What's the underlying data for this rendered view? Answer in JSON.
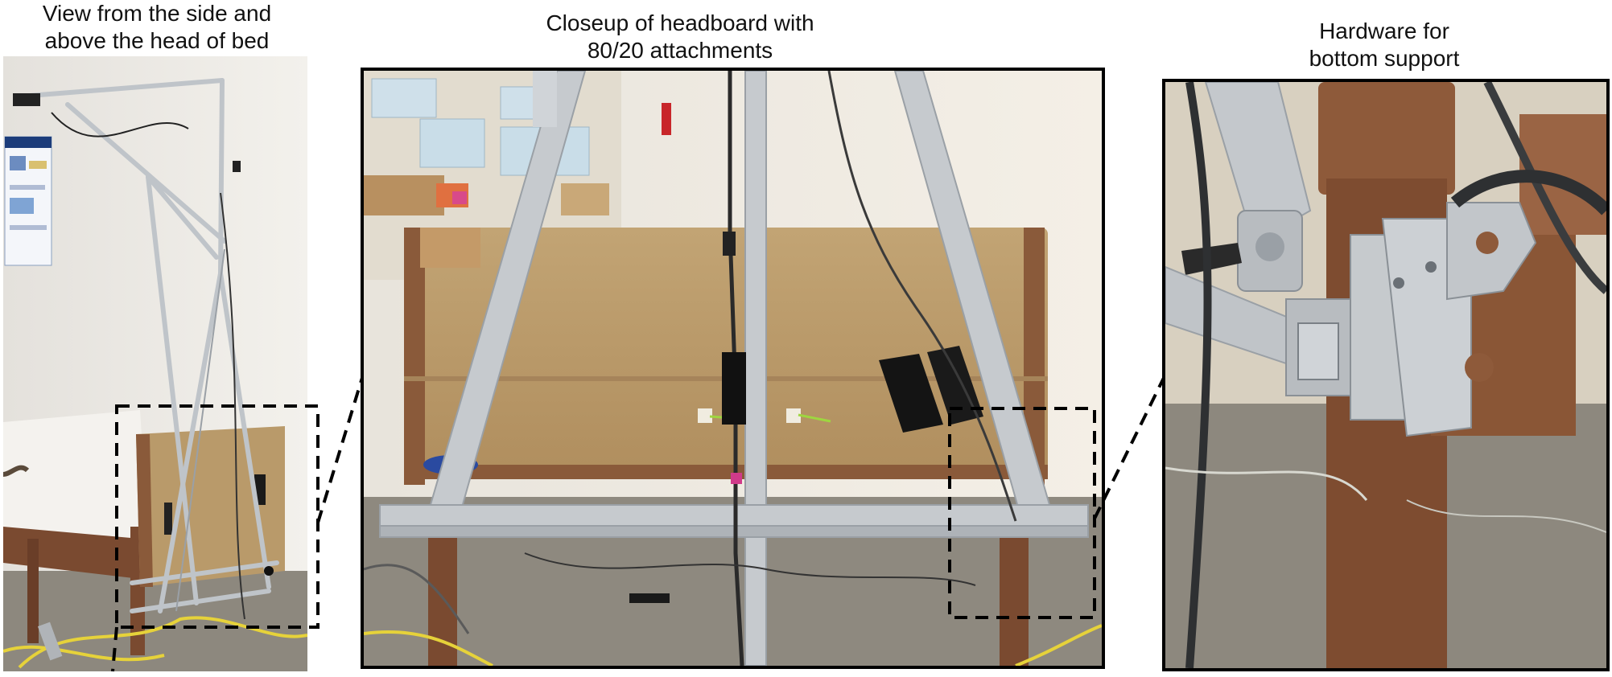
{
  "panels": [
    {
      "id": "side-view",
      "caption_lines": [
        "View from the side and",
        "above the head of bed"
      ]
    },
    {
      "id": "headboard-closeup",
      "caption_lines": [
        "Closeup of headboard with",
        "80/20 attachments"
      ]
    },
    {
      "id": "hardware",
      "caption_lines": [
        "Hardware for",
        "bottom support"
      ]
    }
  ],
  "colors": {
    "frame_border": "#000000",
    "aluminum": "#c8ccd0",
    "headboard_tan": "#b89868",
    "bed_brown": "#8a5a3a",
    "carpet": "#8f8a80",
    "wall": "#ece8e0"
  }
}
